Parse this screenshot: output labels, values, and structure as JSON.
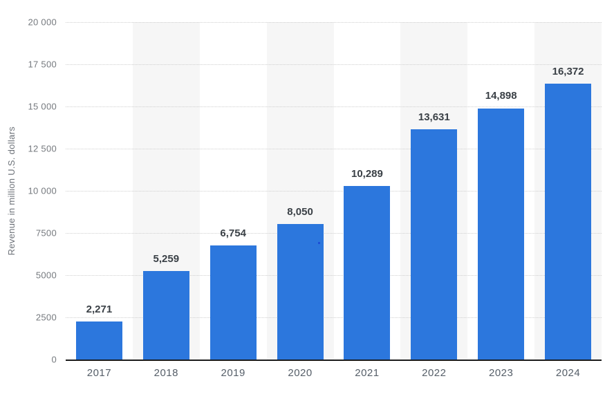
{
  "chart_data": {
    "type": "bar",
    "title": "",
    "xlabel": "",
    "ylabel": "Revenue in million U.S. dollars",
    "categories": [
      "2017",
      "2018",
      "2019",
      "2020",
      "2021",
      "2022",
      "2023",
      "2024"
    ],
    "values": [
      2271,
      5259,
      6754,
      8050,
      10289,
      13631,
      14898,
      16372
    ],
    "value_labels": [
      "2,271",
      "5,259",
      "6,754",
      "8,050",
      "10,289",
      "13,631",
      "14,898",
      "16,372"
    ],
    "ylim": [
      0,
      20000
    ],
    "yticks": [
      {
        "value": 0,
        "label": "0"
      },
      {
        "value": 2500,
        "label": "2500"
      },
      {
        "value": 5000,
        "label": "5000"
      },
      {
        "value": 7500,
        "label": "7500"
      },
      {
        "value": 10000,
        "label": "10 000"
      },
      {
        "value": 12500,
        "label": "12 500"
      },
      {
        "value": 15000,
        "label": "15 000"
      },
      {
        "value": 17500,
        "label": "17 500"
      },
      {
        "value": 20000,
        "label": "20 000"
      }
    ],
    "grid": "horizontal-dotted",
    "legend": "none",
    "background_bands": "alternating vertical bands, even columns shaded",
    "colors": {
      "bar": "#2c77dd",
      "band_alt": "#f6f6f6",
      "gridline": "#cfcfcf",
      "axis_line": "#1b1b1b",
      "ytick_text": "#75797e",
      "xtick_text": "#555e68",
      "value_text": "#3a4046",
      "ylabel_text": "#6e737a",
      "artifact_dot": "#1d50d6"
    }
  }
}
